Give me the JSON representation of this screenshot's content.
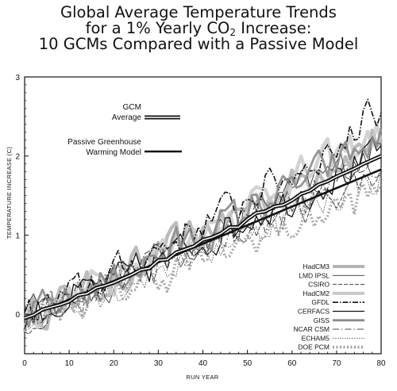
{
  "title": {
    "line1": "Global Average Temperature Trends",
    "line2_pre": "for a 1% Yearly CO",
    "line2_sub": "2",
    "line2_post": " Increase:",
    "line3": "10 GCMs Compared with a Passive Model"
  },
  "chart_data": {
    "type": "line",
    "xlabel": "RUN YEAR",
    "ylabel": "TEMPERATURE INCREASE (C)",
    "xlim": [
      0,
      80
    ],
    "ylim": [
      -0.5,
      3
    ],
    "xticks": [
      0,
      10,
      20,
      30,
      40,
      50,
      60,
      70,
      80
    ],
    "yticks": [
      0,
      1,
      2,
      3
    ],
    "grid": false,
    "legend_position": "bottom-right",
    "annotations": [
      {
        "label": "GCM Average",
        "line1": "GCM",
        "line2": "Average"
      },
      {
        "label": "Passive Greenhouse Warming Model",
        "line1": "Passive Greenhouse",
        "line2": "Warming Model"
      }
    ],
    "series": [
      {
        "name": "HadCM3",
        "color": "#b5b5b5"
      },
      {
        "name": "LMD IPSL",
        "color": "#333333"
      },
      {
        "name": "CSIRO",
        "color": "#333333"
      },
      {
        "name": "HadCM2",
        "color": "#c8c8c8"
      },
      {
        "name": "GFDL",
        "color": "#111111"
      },
      {
        "name": "CERFACS",
        "color": "#111111"
      },
      {
        "name": "GISS",
        "color": "#8a8a8a"
      },
      {
        "name": "NCAR CSM",
        "color": "#333333"
      },
      {
        "name": "ECHAM5",
        "color": "#555555"
      },
      {
        "name": "DOE PCM",
        "color": "#a0a0a0"
      }
    ],
    "passive_model": {
      "x": [
        0,
        80
      ],
      "y": [
        -0.05,
        1.83
      ]
    },
    "gcm_average": {
      "x": [
        0,
        2,
        4,
        6,
        8,
        10,
        12,
        14,
        16,
        18,
        20,
        22,
        24,
        26,
        28,
        30,
        32,
        34,
        36,
        38,
        40,
        42,
        44,
        46,
        48,
        50,
        52,
        54,
        56,
        58,
        60,
        62,
        64,
        66,
        68,
        70,
        72,
        74,
        76,
        78,
        80
      ],
      "y": [
        -0.05,
        -0.01,
        0.06,
        0.09,
        0.12,
        0.16,
        0.24,
        0.26,
        0.33,
        0.36,
        0.4,
        0.45,
        0.5,
        0.56,
        0.58,
        0.68,
        0.69,
        0.78,
        0.82,
        0.86,
        0.94,
        0.97,
        1.02,
        1.1,
        1.1,
        1.2,
        1.28,
        1.3,
        1.36,
        1.38,
        1.44,
        1.52,
        1.56,
        1.64,
        1.68,
        1.74,
        1.79,
        1.84,
        1.9,
        1.95,
        2.0
      ]
    }
  }
}
